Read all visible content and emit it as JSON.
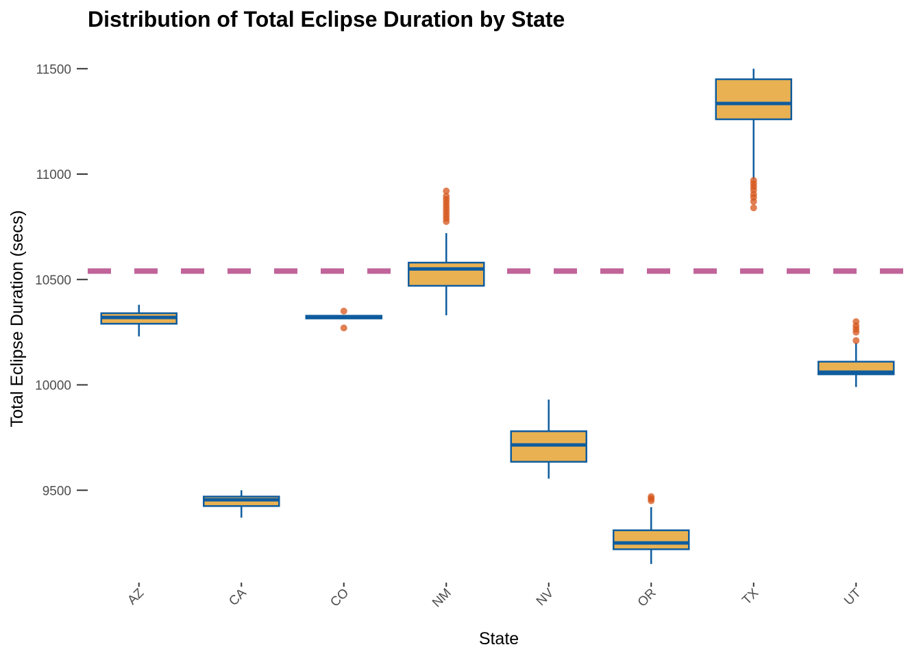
{
  "chart_data": {
    "type": "box",
    "title": "Distribution of Total Eclipse Duration by State",
    "xlabel": "State",
    "ylabel": "Total Eclipse Duration (secs)",
    "categories": [
      "AZ",
      "CA",
      "CO",
      "NM",
      "NV",
      "OR",
      "TX",
      "UT"
    ],
    "yticks": [
      9500,
      10000,
      10500,
      11000,
      11500
    ],
    "ylim": [
      9080,
      11580
    ],
    "boxes": [
      {
        "state": "AZ",
        "whisker_low": 10230,
        "q1": 10290,
        "median": 10320,
        "q3": 10340,
        "whisker_high": 10380,
        "outliers": []
      },
      {
        "state": "CA",
        "whisker_low": 9370,
        "q1": 9425,
        "median": 9455,
        "q3": 9470,
        "whisker_high": 9500,
        "outliers": []
      },
      {
        "state": "CO",
        "whisker_low": 10315,
        "q1": 10315,
        "median": 10322,
        "q3": 10328,
        "whisker_high": 10330,
        "outliers": [
          10350,
          10270
        ]
      },
      {
        "state": "NM",
        "whisker_low": 10330,
        "q1": 10470,
        "median": 10550,
        "q3": 10580,
        "whisker_high": 10720,
        "outliers": [
          10920,
          10895,
          10880,
          10865,
          10850,
          10835,
          10820,
          10805,
          10790,
          10775
        ]
      },
      {
        "state": "NV",
        "whisker_low": 9555,
        "q1": 9635,
        "median": 9715,
        "q3": 9780,
        "whisker_high": 9930,
        "outliers": []
      },
      {
        "state": "OR",
        "whisker_low": 9150,
        "q1": 9220,
        "median": 9250,
        "q3": 9310,
        "whisker_high": 9420,
        "outliers": [
          9470,
          9460,
          9450
        ]
      },
      {
        "state": "TX",
        "whisker_low": 10975,
        "q1": 11260,
        "median": 11335,
        "q3": 11450,
        "whisker_high": 11500,
        "outliers": [
          10970,
          10955,
          10940,
          10925,
          10905,
          10890,
          10870,
          10840
        ]
      },
      {
        "state": "UT",
        "whisker_low": 9990,
        "q1": 10050,
        "median": 10060,
        "q3": 10110,
        "whisker_high": 10200,
        "outliers": [
          10300,
          10280,
          10265,
          10250,
          10210
        ]
      }
    ],
    "reference_line": 10540,
    "grid": false,
    "colors": {
      "box_fill": "#E9B152",
      "box_stroke": "#0E5C9E",
      "outlier": "#D5561B",
      "reference_line": "#C0649A",
      "tick_label": "#4d4d4d"
    }
  }
}
